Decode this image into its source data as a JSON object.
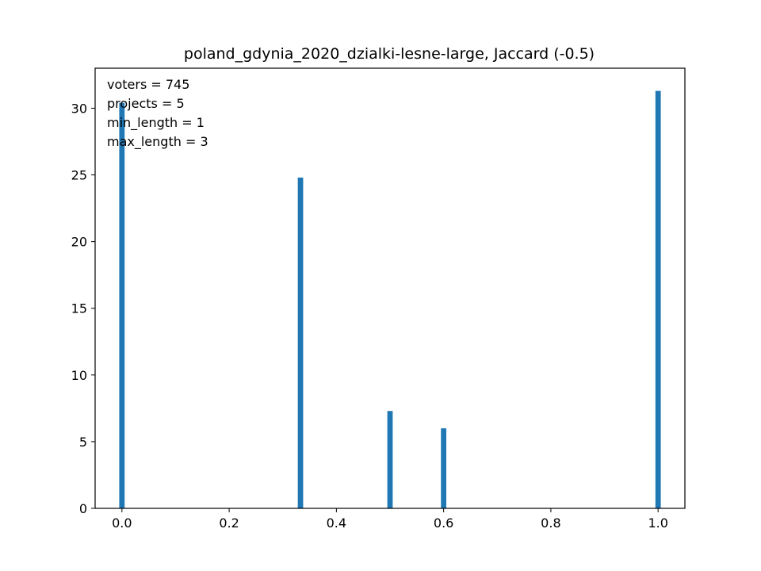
{
  "chart_data": {
    "type": "bar",
    "title": "poland_gdynia_2020_dzialki-lesne-large, Jaccard (-0.5)",
    "xlabel": "",
    "ylabel": "",
    "xlim": [
      -0.05,
      1.05
    ],
    "ylim": [
      0,
      33
    ],
    "bar_width": 0.01,
    "color": "#1f77b4",
    "grid": false,
    "x": [
      0.0,
      0.333,
      0.5,
      0.6,
      1.0
    ],
    "values": [
      30.4,
      24.8,
      7.3,
      6.0,
      31.3
    ],
    "x_ticks": [
      0.0,
      0.2,
      0.4,
      0.6,
      0.8,
      1.0
    ],
    "x_tick_labels": [
      "0.0",
      "0.2",
      "0.4",
      "0.6",
      "0.8",
      "1.0"
    ],
    "y_ticks": [
      0,
      5,
      10,
      15,
      20,
      25,
      30
    ],
    "y_tick_labels": [
      "0",
      "5",
      "10",
      "15",
      "20",
      "25",
      "30"
    ],
    "annotations": [
      "voters = 745",
      "projects = 5",
      "min_length = 1",
      "max_length = 3"
    ]
  }
}
